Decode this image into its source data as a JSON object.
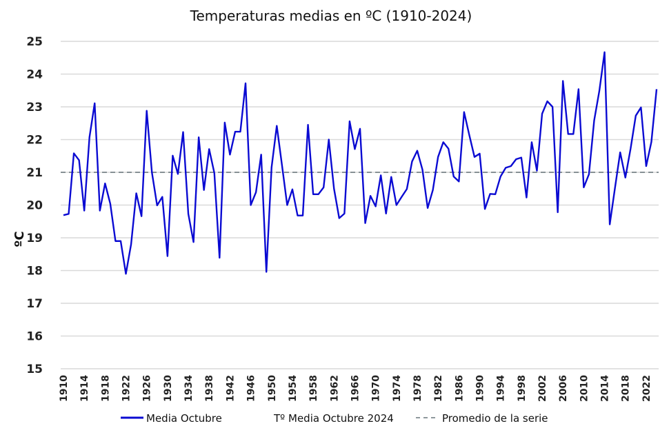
{
  "chart_data": {
    "type": "line",
    "title": "Temperaturas medias en ºC (1910-2024)",
    "xlabel": "",
    "ylabel": "ºC",
    "ylim": [
      15,
      25
    ],
    "yticks": [
      15,
      16,
      17,
      18,
      19,
      20,
      21,
      22,
      23,
      24,
      25
    ],
    "grid": true,
    "legend_position": "bottom",
    "x": [
      1910,
      1911,
      1912,
      1913,
      1914,
      1915,
      1916,
      1917,
      1918,
      1919,
      1920,
      1921,
      1922,
      1923,
      1924,
      1925,
      1926,
      1927,
      1928,
      1929,
      1930,
      1931,
      1932,
      1933,
      1934,
      1935,
      1936,
      1937,
      1938,
      1939,
      1940,
      1941,
      1942,
      1943,
      1944,
      1945,
      1946,
      1947,
      1948,
      1949,
      1950,
      1951,
      1952,
      1953,
      1954,
      1955,
      1956,
      1957,
      1958,
      1959,
      1960,
      1961,
      1962,
      1963,
      1964,
      1965,
      1966,
      1967,
      1968,
      1969,
      1970,
      1971,
      1972,
      1973,
      1974,
      1975,
      1976,
      1977,
      1978,
      1979,
      1980,
      1981,
      1982,
      1983,
      1984,
      1985,
      1986,
      1987,
      1988,
      1989,
      1990,
      1991,
      1992,
      1993,
      1994,
      1995,
      1996,
      1997,
      1998,
      1999,
      2000,
      2001,
      2002,
      2003,
      2004,
      2005,
      2006,
      2007,
      2008,
      2009,
      2010,
      2011,
      2012,
      2013,
      2014,
      2015,
      2016,
      2017,
      2018,
      2019,
      2020,
      2021,
      2022,
      2023,
      2024
    ],
    "xtick_labels": [
      "1910",
      "1914",
      "1918",
      "1922",
      "1926",
      "1930",
      "1934",
      "1938",
      "1942",
      "1946",
      "1950",
      "1954",
      "1958",
      "1962",
      "1966",
      "1970",
      "1974",
      "1978",
      "1982",
      "1986",
      "1990",
      "1994",
      "1998",
      "2002",
      "2006",
      "2010",
      "2014",
      "2018",
      "2022"
    ],
    "series": [
      {
        "name": "Media Octubre",
        "color": "#0a0ad2",
        "values": [
          19.69,
          19.73,
          21.58,
          21.37,
          19.83,
          22.07,
          23.11,
          19.83,
          20.66,
          20.04,
          18.9,
          18.9,
          17.9,
          18.8,
          20.36,
          19.66,
          22.88,
          21.0,
          19.99,
          20.25,
          18.44,
          21.51,
          20.95,
          22.23,
          19.73,
          18.87,
          22.07,
          20.46,
          21.71,
          20.98,
          18.39,
          22.52,
          21.54,
          22.24,
          22.24,
          23.72,
          20.0,
          20.39,
          21.54,
          17.96,
          21.15,
          22.42,
          21.22,
          20.0,
          20.48,
          19.68,
          19.68,
          22.45,
          20.33,
          20.33,
          20.54,
          22.0,
          20.5,
          19.6,
          19.74,
          22.56,
          21.71,
          22.33,
          19.45,
          20.28,
          19.96,
          20.91,
          19.74,
          20.86,
          20.0,
          20.25,
          20.49,
          21.33,
          21.66,
          21.08,
          19.91,
          20.46,
          21.47,
          21.92,
          21.72,
          20.87,
          20.72,
          22.84,
          22.14,
          21.47,
          21.57,
          19.88,
          20.34,
          20.33,
          20.87,
          21.14,
          21.19,
          21.4,
          21.45,
          20.23,
          21.92,
          21.05,
          22.79,
          23.17,
          23.0,
          19.78,
          23.79,
          22.17,
          22.17,
          23.54,
          20.54,
          20.94,
          22.58,
          23.49,
          24.67,
          19.41,
          20.52,
          21.61,
          20.84,
          21.72,
          22.73,
          22.98,
          21.19,
          21.93,
          23.54
        ]
      },
      {
        "name": "Tº Media Octubre 2024",
        "color": "#ffffff"
      },
      {
        "name": "Promedio de la serie",
        "color": "#4a5a60",
        "value": 21.0,
        "style": "dashed"
      }
    ]
  }
}
